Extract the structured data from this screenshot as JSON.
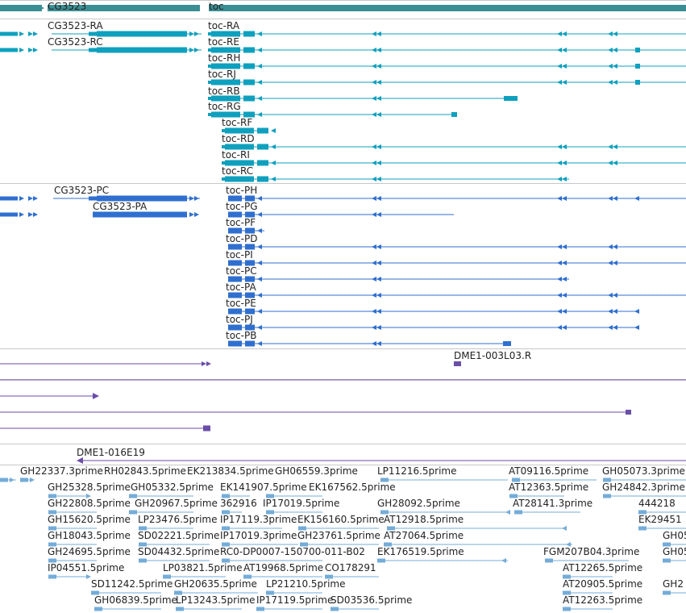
{
  "colors": {
    "gene": "#3a8f94",
    "transcript": "#0fa0be",
    "protein": "#2f6fcf",
    "est": "#6a4ea8",
    "clone": "#74acd8",
    "separator": "#c8c8c8"
  },
  "icons": {
    "strand_arrow": "chevron-arrow-icon"
  },
  "tracks": {
    "genes": [
      {
        "label": "CG3523",
        "strand": "+"
      },
      {
        "label": "toc",
        "strand": "-"
      }
    ],
    "transcripts": {
      "cg3523": [
        "CG3523-RA",
        "CG3523-RC"
      ],
      "toc": [
        "toc-RA",
        "toc-RE",
        "toc-RH",
        "toc-RJ",
        "toc-RB",
        "toc-RG",
        "toc-RF",
        "toc-RD",
        "toc-RI",
        "toc-RC"
      ]
    },
    "proteins": {
      "cg3523": [
        "CG3523-PC",
        "CG3523-PA"
      ],
      "toc": [
        "toc-PH",
        "toc-PG",
        "toc-PF",
        "toc-PD",
        "toc-PI",
        "toc-PC",
        "toc-PA",
        "toc-PE",
        "toc-PJ",
        "toc-PB"
      ]
    },
    "ests": [
      "DME1-003L03.R",
      "DME1-016E19"
    ],
    "clones": [
      "GH22337.3prime",
      "RH02843.5prime",
      "EK213834.5prime",
      "GH06559.3prime",
      "LP11216.5prime",
      "AT09116.5prime",
      "GH05073.3prime",
      "GH25328.5prime",
      "GH05332.5prime",
      "EK141907.5prime",
      "EK167562.5prime",
      "AT12363.5prime",
      "GH24842.3prime",
      "GH22808.5prime",
      "GH20967.5prime",
      "362916",
      "IP17019.5prime",
      "GH28092.5prime",
      "AT28141.3prime",
      "444218",
      "GH15620.5prime",
      "LP23476.5prime",
      "IP17119.3prime",
      "EK156160.5prime",
      "AT12918.5prime",
      "EK29451",
      "GH18043.5prime",
      "SD02221.5prime",
      "IP17019.3prime",
      "GH23761.5prime",
      "AT27064.5prime",
      "GH05",
      "GH24695.5prime",
      "SD04432.5prime",
      "RC0-DP0007-150700-011-B02",
      "EK176519.5prime",
      "FGM207B04.3prime",
      "GH05",
      "IP04551.5prime",
      "LP03821.5prime",
      "AT19968.5prime",
      "CO178291",
      "AT12265.5prime",
      "SD11242.5prime",
      "GH20635.5prime",
      "LP21210.5prime",
      "AT20905.5prime",
      "GH2",
      "GH06839.5prime",
      "LP13243.5prime",
      "IP17119.5prime",
      "SD03536.5prime",
      "AT12263.5prime"
    ]
  }
}
